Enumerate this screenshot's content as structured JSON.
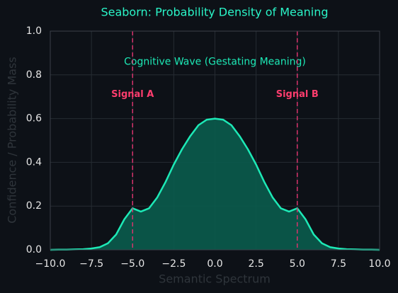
{
  "chart_data": {
    "type": "area",
    "title": "Seaborn: Probability Density of Meaning",
    "xlabel": "Semantic Spectrum",
    "ylabel": "Confidence / Probability Mass",
    "x": [
      -10,
      -9.5,
      -9,
      -8.5,
      -8,
      -7.5,
      -7,
      -6.5,
      -6,
      -5.5,
      -5,
      -4.5,
      -4,
      -3.5,
      -3,
      -2.5,
      -2,
      -1.5,
      -1,
      -0.5,
      0,
      0.5,
      1,
      1.5,
      2,
      2.5,
      3,
      3.5,
      4,
      4.5,
      5,
      5.5,
      6,
      6.5,
      7,
      7.5,
      8,
      8.5,
      9,
      9.5,
      10
    ],
    "series": [
      {
        "name": "Cognitive Wave (Gestating Meaning)",
        "color": "#1de9b6",
        "fill": "#0a5c4c",
        "values": [
          0.0,
          0.001,
          0.001,
          0.002,
          0.003,
          0.006,
          0.012,
          0.03,
          0.07,
          0.14,
          0.19,
          0.175,
          0.19,
          0.24,
          0.31,
          0.39,
          0.46,
          0.52,
          0.57,
          0.595,
          0.6,
          0.595,
          0.57,
          0.52,
          0.46,
          0.39,
          0.31,
          0.24,
          0.19,
          0.175,
          0.19,
          0.14,
          0.07,
          0.03,
          0.012,
          0.006,
          0.003,
          0.002,
          0.001,
          0.001,
          0.0
        ]
      }
    ],
    "vlines": [
      {
        "x": -5,
        "label": "Signal A"
      },
      {
        "x": 5,
        "label": "Signal B"
      }
    ],
    "vline_color": "#d6336c",
    "xlim": [
      -10,
      10
    ],
    "xticks": [
      {
        "value": -10,
        "label": "−10.0"
      },
      {
        "value": -7.5,
        "label": "−7.5"
      },
      {
        "value": -5,
        "label": "−5.0"
      },
      {
        "value": -2.5,
        "label": "−2.5"
      },
      {
        "value": 0,
        "label": "0.0"
      },
      {
        "value": 2.5,
        "label": "2.5"
      },
      {
        "value": 5,
        "label": "5.0"
      },
      {
        "value": 7.5,
        "label": "7.5"
      },
      {
        "value": 10,
        "label": "10.0"
      }
    ],
    "ylim": [
      0,
      1
    ],
    "yticks": [
      {
        "value": 0,
        "label": "0.0"
      },
      {
        "value": 0.2,
        "label": "0.2"
      },
      {
        "value": 0.4,
        "label": "0.4"
      },
      {
        "value": 0.6,
        "label": "0.6"
      },
      {
        "value": 0.8,
        "label": "0.8"
      },
      {
        "value": 1,
        "label": "1.0"
      }
    ],
    "grid": true
  }
}
